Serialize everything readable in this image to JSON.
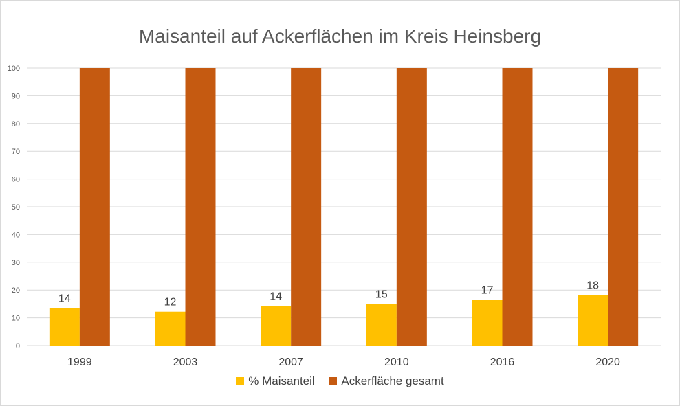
{
  "chart_data": {
    "type": "bar",
    "title": "Maisanteil auf Ackerflächen im Kreis Heinsberg",
    "categories": [
      "1999",
      "2003",
      "2007",
      "2010",
      "2016",
      "2020"
    ],
    "series": [
      {
        "name": "% Maisanteil",
        "color": "#ffc000",
        "values": [
          13.5,
          12.2,
          14.2,
          15,
          16.5,
          18.2
        ],
        "labels": [
          "14",
          "12",
          "14",
          "15",
          "17",
          "18"
        ]
      },
      {
        "name": "Ackerfläche gesamt",
        "color": "#c55a11",
        "values": [
          100,
          100,
          100,
          100,
          100,
          100
        ]
      }
    ],
    "yticks": [
      "0",
      "10",
      "20",
      "30",
      "40",
      "50",
      "60",
      "70",
      "80",
      "90",
      "100"
    ],
    "ylim": [
      0,
      100
    ],
    "xlabel": "",
    "ylabel": "",
    "grid": true,
    "legend": "bottom"
  }
}
